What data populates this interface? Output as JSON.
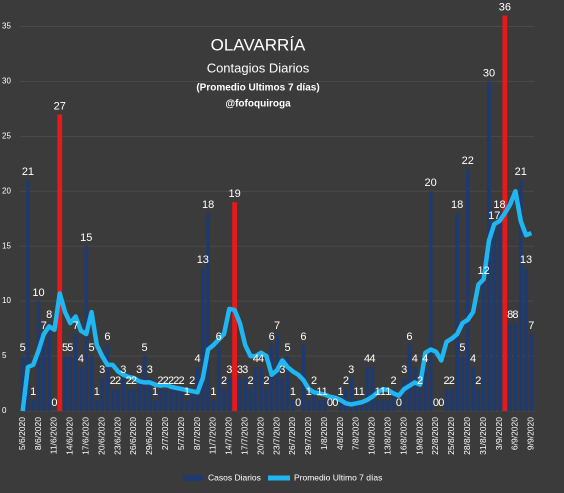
{
  "chart_data": {
    "type": "bar_line",
    "title": "OLAVARRÍA",
    "subtitle": "Contagios Diarios",
    "note": "(Promedio Ultimos 7 días)",
    "author": "@fofoquiroga",
    "categories": [
      "5/6/2020",
      null,
      null,
      "8/6/2020",
      null,
      null,
      "11/6/2020",
      null,
      null,
      "14/6/2020",
      null,
      null,
      "17/6/2020",
      null,
      null,
      "20/6/2020",
      null,
      null,
      "23/6/2020",
      null,
      null,
      "26/6/2020",
      null,
      null,
      "29/6/2020",
      null,
      null,
      "2/7/2020",
      null,
      null,
      "5/7/2020",
      null,
      null,
      "8/7/2020",
      null,
      null,
      "11/7/2020",
      null,
      null,
      "14/7/2020",
      null,
      null,
      "17/7/2020",
      null,
      null,
      "20/7/2020",
      null,
      null,
      "23/7/2020",
      null,
      null,
      "26/7/2020",
      null,
      null,
      "29/7/2020",
      null,
      null,
      "1/8/2020",
      null,
      null,
      "4/8/2020",
      null,
      null,
      "7/8/2020",
      null,
      null,
      "10/8/2020",
      null,
      null,
      "13/8/2020",
      null,
      null,
      "16/8/2020",
      null,
      null,
      "19/8/2020",
      null,
      null,
      "22/8/2020",
      null,
      null,
      "25/8/2020",
      null,
      null,
      "28/8/2020",
      null,
      null,
      "31/8/2020",
      null,
      null,
      "3/9/2020",
      null,
      null,
      "6/9/2020",
      null,
      null,
      "9/9/2020"
    ],
    "series": [
      {
        "name": "Casos Diarios",
        "color": "#1e3a6e",
        "values": [
          5,
          21,
          1,
          10,
          7,
          8,
          0,
          27,
          5,
          5,
          7,
          4,
          15,
          5,
          1,
          3,
          6,
          2,
          2,
          3,
          2,
          2,
          3,
          5,
          3,
          1,
          2,
          2,
          2,
          2,
          2,
          1,
          2,
          4,
          13,
          18,
          1,
          6,
          2,
          3,
          19,
          3,
          3,
          2,
          4,
          4,
          2,
          6,
          7,
          3,
          5,
          1,
          0,
          6,
          1,
          2,
          1,
          1,
          0,
          0,
          1,
          2,
          3,
          1,
          1,
          4,
          4,
          1,
          1,
          1,
          2,
          0,
          3,
          6,
          4,
          2,
          4,
          20,
          0,
          0,
          2,
          2,
          18,
          5,
          22,
          4,
          2,
          12,
          30,
          17,
          18,
          36,
          8,
          8,
          21,
          13,
          7
        ],
        "colors": [
          "#1e3a6e",
          "#1e3a6e",
          "#1e3a6e",
          "#1e3a6e",
          "#1e3a6e",
          "#1e3a6e",
          "#1e3a6e",
          "#e8191b",
          "#1e3a6e",
          "#1e3a6e",
          "#1e3a6e",
          "#1e3a6e",
          "#1e3a6e",
          "#1e3a6e",
          "#1e3a6e",
          "#1e3a6e",
          "#1e3a6e",
          "#1e3a6e",
          "#1e3a6e",
          "#1e3a6e",
          "#1e3a6e",
          "#1e3a6e",
          "#1e3a6e",
          "#1e3a6e",
          "#1e3a6e",
          "#1e3a6e",
          "#1e3a6e",
          "#1e3a6e",
          "#1e3a6e",
          "#1e3a6e",
          "#1e3a6e",
          "#1e3a6e",
          "#1e3a6e",
          "#1e3a6e",
          "#1e3a6e",
          "#1e3a6e",
          "#1e3a6e",
          "#1e3a6e",
          "#1e3a6e",
          "#1e3a6e",
          "#e8191b",
          "#1e3a6e",
          "#1e3a6e",
          "#1e3a6e",
          "#1e3a6e",
          "#1e3a6e",
          "#1e3a6e",
          "#1e3a6e",
          "#1e3a6e",
          "#1e3a6e",
          "#1e3a6e",
          "#1e3a6e",
          "#1e3a6e",
          "#1e3a6e",
          "#1e3a6e",
          "#1e3a6e",
          "#1e3a6e",
          "#1e3a6e",
          "#1e3a6e",
          "#1e3a6e",
          "#1e3a6e",
          "#1e3a6e",
          "#1e3a6e",
          "#1e3a6e",
          "#1e3a6e",
          "#1e3a6e",
          "#1e3a6e",
          "#1e3a6e",
          "#1e3a6e",
          "#1e3a6e",
          "#1e3a6e",
          "#1e3a6e",
          "#1e3a6e",
          "#1e3a6e",
          "#1e3a6e",
          "#1e3a6e",
          "#1e3a6e",
          "#1e3a6e",
          "#1e3a6e",
          "#1e3a6e",
          "#1e3a6e",
          "#1e3a6e",
          "#1e3a6e",
          "#1e3a6e",
          "#1e3a6e",
          "#1e3a6e",
          "#1e3a6e",
          "#1e3a6e",
          "#1e3a6e",
          "#1e3a6e",
          "#1e3a6e",
          "#e8191b",
          "#1e3a6e",
          "#1e3a6e",
          "#1e3a6e",
          "#1e3a6e",
          "#1e3a6e"
        ]
      },
      {
        "name": "Promedio Ultimo 7 días",
        "color": "#1fb6f2",
        "values": [
          0,
          4,
          4.2,
          5.5,
          7,
          7.7,
          7.4,
          10.7,
          9,
          8,
          8.6,
          7.3,
          7,
          9,
          6,
          5,
          4.2,
          4.2,
          3.6,
          3.3,
          3.1,
          3,
          2.7,
          2.6,
          2.6,
          2.4,
          2.3,
          2.4,
          2.2,
          2.1,
          2,
          1.9,
          1.8,
          1.7,
          3,
          5.6,
          6,
          6.5,
          7,
          9.3,
          9.2,
          8,
          6,
          5,
          5,
          5.3,
          5,
          3.3,
          3.7,
          4.6,
          4,
          3.6,
          3.3,
          2.8,
          2,
          1.7,
          1.6,
          1.5,
          1.3,
          1.2,
          1,
          0.7,
          0.6,
          0.7,
          0.8,
          1,
          1.3,
          1.7,
          2,
          1.9,
          1.6,
          1.4,
          2,
          2.3,
          2.6,
          2.4,
          5.3,
          5.6,
          5.4,
          4.6,
          6.3,
          6.6,
          7,
          8,
          8.3,
          9,
          11.5,
          12,
          15.5,
          17,
          17.3,
          18,
          18.8,
          20,
          17.3,
          16,
          16.2
        ]
      }
    ],
    "ylim": [
      0,
      36.5
    ],
    "yticks": [
      0,
      5,
      10,
      15,
      20,
      25,
      30,
      35
    ],
    "grid": true
  }
}
